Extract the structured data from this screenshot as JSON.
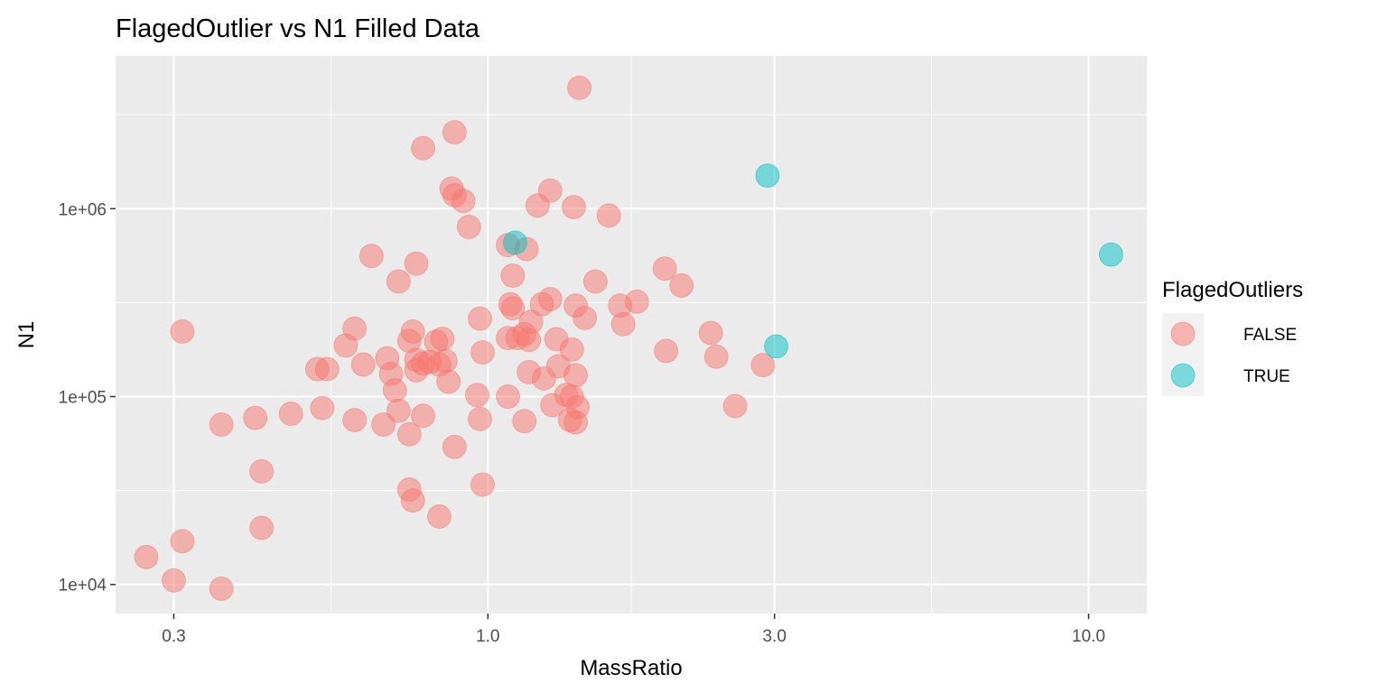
{
  "chart_data": {
    "type": "scatter",
    "title": "FlagedOutlier vs N1 Filled Data",
    "xlabel": "MassRatio",
    "ylabel": "N1",
    "x_scale": "log10",
    "y_scale": "log10",
    "xlim": [
      0.24,
      12.5
    ],
    "ylim": [
      7000,
      6500000
    ],
    "x_ticks": [
      {
        "value": 0.3,
        "label": "0.3"
      },
      {
        "value": 1.0,
        "label": "1.0"
      },
      {
        "value": 3.0,
        "label": "3.0"
      },
      {
        "value": 10.0,
        "label": "10.0"
      }
    ],
    "x_minor_ticks": [
      0.548,
      1.732,
      5.477
    ],
    "y_ticks": [
      {
        "value": 10000,
        "label": "1e+04"
      },
      {
        "value": 100000,
        "label": "1e+05"
      },
      {
        "value": 1000000,
        "label": "1e+06"
      }
    ],
    "y_minor_ticks": [
      31623,
      316228,
      3162278
    ],
    "grid": true,
    "legend": {
      "title": "FlagedOutliers",
      "position": "right",
      "entries": [
        {
          "label": "FALSE",
          "color": "#F8766D"
        },
        {
          "label": "TRUE",
          "color": "#00BFC4"
        }
      ]
    },
    "series": [
      {
        "name": "FALSE",
        "color": "#F8766D",
        "points": [
          [
            1.42,
            4400000
          ],
          [
            0.88,
            2550000
          ],
          [
            0.78,
            2100000
          ],
          [
            0.87,
            1280000
          ],
          [
            0.88,
            1180000
          ],
          [
            0.91,
            1100000
          ],
          [
            1.27,
            1250000
          ],
          [
            1.21,
            1040000
          ],
          [
            1.39,
            1020000
          ],
          [
            1.59,
            920000
          ],
          [
            0.93,
            800000
          ],
          [
            1.08,
            640000
          ],
          [
            1.16,
            610000
          ],
          [
            0.64,
            560000
          ],
          [
            0.76,
            510000
          ],
          [
            1.1,
            440000
          ],
          [
            0.71,
            410000
          ],
          [
            1.97,
            480000
          ],
          [
            2.1,
            390000
          ],
          [
            1.51,
            410000
          ],
          [
            1.09,
            310000
          ],
          [
            1.1,
            295000
          ],
          [
            1.23,
            310000
          ],
          [
            1.27,
            330000
          ],
          [
            1.4,
            305000
          ],
          [
            1.66,
            305000
          ],
          [
            1.77,
            320000
          ],
          [
            0.97,
            260000
          ],
          [
            0.31,
            222000
          ],
          [
            0.6,
            230000
          ],
          [
            0.58,
            187000
          ],
          [
            1.18,
            250000
          ],
          [
            1.15,
            215000
          ],
          [
            1.45,
            262000
          ],
          [
            1.68,
            243000
          ],
          [
            2.35,
            218000
          ],
          [
            1.08,
            205000
          ],
          [
            1.12,
            205000
          ],
          [
            1.17,
            200000
          ],
          [
            0.75,
            222000
          ],
          [
            0.74,
            198000
          ],
          [
            0.82,
            196000
          ],
          [
            0.84,
            203000
          ],
          [
            1.3,
            202000
          ],
          [
            0.68,
            160000
          ],
          [
            0.76,
            157000
          ],
          [
            0.78,
            150000
          ],
          [
            0.8,
            153000
          ],
          [
            0.85,
            155000
          ],
          [
            0.98,
            172000
          ],
          [
            1.38,
            178000
          ],
          [
            1.98,
            175000
          ],
          [
            2.4,
            163000
          ],
          [
            2.87,
            147000
          ],
          [
            0.52,
            140000
          ],
          [
            0.54,
            140000
          ],
          [
            0.62,
            148000
          ],
          [
            0.69,
            132000
          ],
          [
            0.76,
            138000
          ],
          [
            0.83,
            148000
          ],
          [
            1.17,
            135000
          ],
          [
            1.31,
            145000
          ],
          [
            1.4,
            130000
          ],
          [
            1.24,
            125000
          ],
          [
            0.86,
            120000
          ],
          [
            0.7,
            108000
          ],
          [
            0.96,
            102000
          ],
          [
            1.08,
            100000
          ],
          [
            1.35,
            102000
          ],
          [
            1.38,
            100000
          ],
          [
            1.28,
            90000
          ],
          [
            1.41,
            88000
          ],
          [
            0.36,
            71000
          ],
          [
            0.41,
            77000
          ],
          [
            0.47,
            81000
          ],
          [
            0.53,
            87000
          ],
          [
            0.6,
            75000
          ],
          [
            0.67,
            71000
          ],
          [
            0.71,
            84000
          ],
          [
            0.78,
            79000
          ],
          [
            0.74,
            63000
          ],
          [
            0.97,
            76000
          ],
          [
            1.15,
            74000
          ],
          [
            1.37,
            75000
          ],
          [
            1.4,
            73000
          ],
          [
            2.58,
            89000
          ],
          [
            0.88,
            54000
          ],
          [
            0.42,
            40000
          ],
          [
            0.74,
            32000
          ],
          [
            0.75,
            28000
          ],
          [
            0.98,
            34000
          ],
          [
            0.83,
            23000
          ],
          [
            0.42,
            20000
          ],
          [
            0.31,
            17000
          ],
          [
            0.27,
            14000
          ],
          [
            0.3,
            10500
          ],
          [
            0.36,
            9500
          ]
        ]
      },
      {
        "name": "TRUE",
        "color": "#00BFC4",
        "points": [
          [
            2.92,
            1500000
          ],
          [
            1.11,
            660000
          ],
          [
            10.9,
            570000
          ],
          [
            3.02,
            185000
          ]
        ]
      }
    ]
  }
}
